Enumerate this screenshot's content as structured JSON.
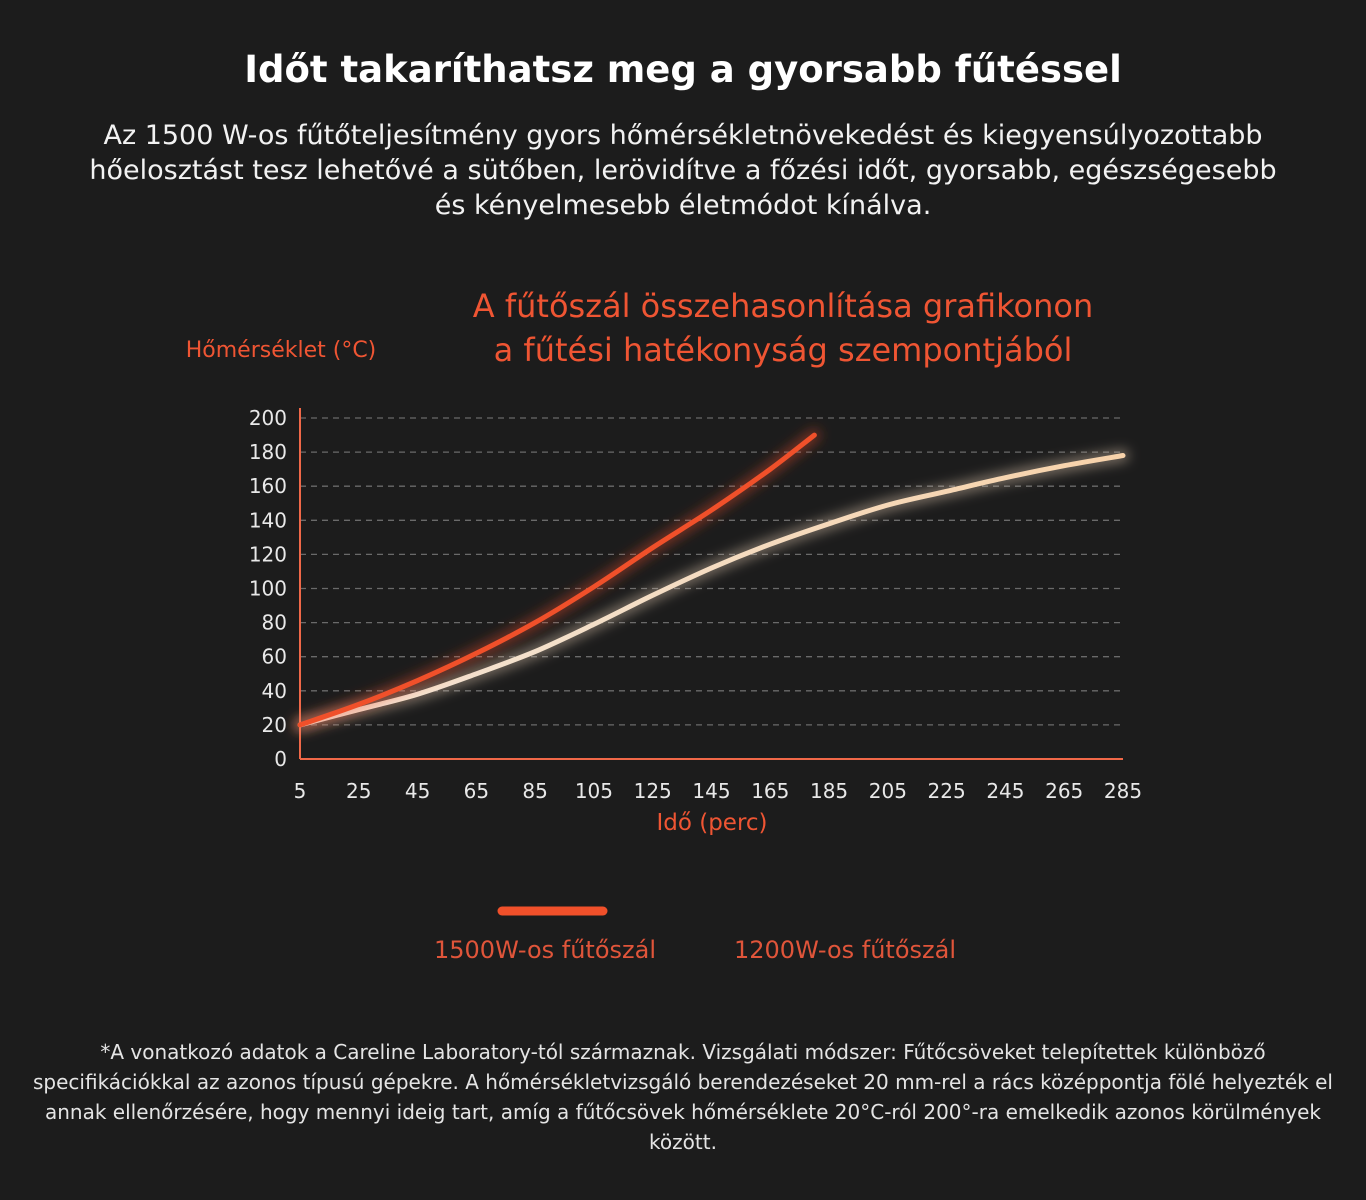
{
  "header": {
    "title": "Időt takaríthatsz meg a gyorsabb fűtéssel",
    "description": "Az 1500 W-os fűtőteljesítmény gyors hőmérsékletnövekedést és kiegyensúlyozottabb hőelosztást tesz lehetővé a sütőben, lerövidítve a főzési időt, gyorsabb, egészségesebb és kényelmesebb életmódot kínálva."
  },
  "chart_data": {
    "type": "line",
    "title_line1": "A fűtőszál összehasonlítása grafikonon",
    "title_line2": "a fűtési hatékonyság szempontjából",
    "xlabel": "Idő (perc)",
    "ylabel": "Hőmérséklet (°C)",
    "x_ticks": [
      "5",
      "25",
      "45",
      "65",
      "85",
      "105",
      "125",
      "145",
      "165",
      "185",
      "205",
      "225",
      "245",
      "265",
      "285"
    ],
    "y_ticks": [
      "0",
      "20",
      "40",
      "60",
      "80",
      "100",
      "120",
      "140",
      "160",
      "180",
      "200"
    ],
    "xlim": [
      5,
      285
    ],
    "ylim": [
      0,
      200
    ],
    "grid": "horizontal dashed",
    "series": [
      {
        "name": "1500W-os fűtőszál",
        "color": "#f0502a",
        "x": [
          5,
          25,
          45,
          65,
          85,
          105,
          125,
          145,
          165,
          180
        ],
        "y": [
          20,
          32,
          46,
          62,
          80,
          101,
          124,
          146,
          170,
          190
        ]
      },
      {
        "name": "1200W-os fűtőszál",
        "color": "#f6dcc0",
        "x": [
          5,
          25,
          45,
          65,
          85,
          105,
          125,
          145,
          165,
          185,
          205,
          225,
          245,
          265,
          285
        ],
        "y": [
          20,
          29,
          38,
          50,
          63,
          79,
          96,
          112,
          126,
          138,
          149,
          157,
          165,
          172,
          178
        ]
      }
    ]
  },
  "footnote": "*A vonatkozó adatok a Careline Laboratory-tól származnak. Vizsgálati módszer: Fűtőcsöveket telepítettek különböző specifikációkkal az azonos típusú gépekre. A hőmérsékletvizsgáló berendezéseket 20 mm-rel a rács középpontja fölé helyezték el annak ellenőrzésére, hogy mennyi ideig tart, amíg a fűtőcsövek hőmérséklete 20°C-ról 200°-ra emelkedik azonos körülmények között."
}
